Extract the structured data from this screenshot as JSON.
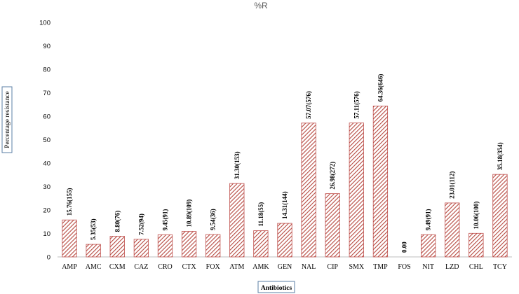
{
  "chart_data": {
    "type": "bar",
    "title": "%R",
    "xlabel": "Antibiotics",
    "ylabel": "Percentage resistance",
    "ylim": [
      0,
      100
    ],
    "yticks": [
      0,
      10,
      20,
      30,
      40,
      50,
      60,
      70,
      80,
      90,
      100
    ],
    "categories": [
      "AMP",
      "AMC",
      "CXM",
      "CAZ",
      "CRO",
      "CTX",
      "FOX",
      "ATM",
      "AMK",
      "GEN",
      "NAL",
      "CIP",
      "SMX",
      "TMP",
      "FOS",
      "NIT",
      "LZD",
      "CHL",
      "TCY"
    ],
    "values": [
      15.76,
      5.35,
      8.8,
      7.52,
      9.45,
      10.89,
      9.54,
      31.3,
      11.18,
      14.31,
      57.07,
      26.98,
      57.11,
      64.36,
      0.0,
      9.49,
      23.01,
      10.06,
      35.18
    ],
    "data_labels": [
      "15.76(155)",
      "5.35(53)",
      "8.80(76)",
      "7.52(94)",
      "9.45(91)",
      "10.89(109)",
      "9.54(36)",
      "31.30(153)",
      "11.18(55)",
      "14.31(144)",
      "57.07(576)",
      "26.98(272)",
      "57.11(576)",
      "64.36(646)",
      "0.00",
      "9.49(91)",
      "23.01(112)",
      "10.06(100)",
      "35.18(354)"
    ],
    "grid": false,
    "legend": "none",
    "bar_fill_color": "#c0504d",
    "bar_hatch": "diagonal"
  }
}
